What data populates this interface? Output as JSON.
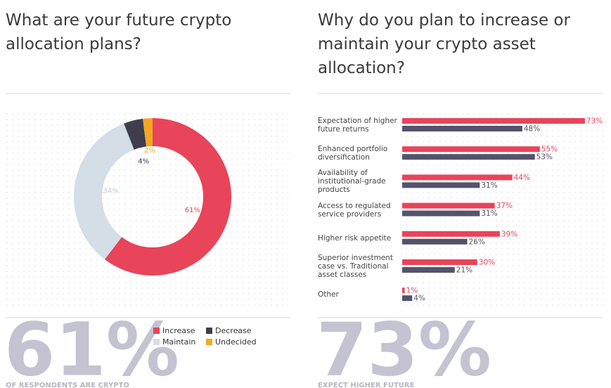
{
  "chart_data": [
    {
      "type": "pie",
      "title": "What are your future crypto allocation plans?",
      "categories": [
        "Increase",
        "Maintain",
        "Decrease",
        "Undecided"
      ],
      "values": [
        61,
        34,
        4,
        2
      ],
      "value_labels": [
        "61%",
        "34%",
        "4%",
        "2%"
      ],
      "colors": [
        "#e8445a",
        "#d3dee7",
        "#3f3d4e",
        "#f5a623"
      ],
      "callout": "61%",
      "callout_caption": "OF RESPONDENTS ARE CRYPTO"
    },
    {
      "type": "bar",
      "orientation": "horizontal",
      "title": "Why do you plan to increase or maintain your crypto asset allocation?",
      "categories": [
        "Expectation of higher future returns",
        "Enhanced portfolio diversification",
        "Availability of institutional-grade products",
        "Access to regulated service providers",
        "Higher risk appetite",
        "Superior investment case vs. Traditional asset classes",
        "Other"
      ],
      "series": [
        {
          "color": "#e8445a",
          "values": [
            73,
            55,
            44,
            37,
            39,
            30,
            1
          ],
          "value_labels": [
            "73%",
            "55%",
            "44%",
            "37%",
            "39%",
            "30%",
            "1%"
          ]
        },
        {
          "color": "#55536a",
          "values": [
            48,
            53,
            31,
            31,
            26,
            21,
            4
          ],
          "value_labels": [
            "48%",
            "53%",
            "31%",
            "31%",
            "26%",
            "21%",
            "4%"
          ]
        }
      ],
      "xlim": [
        0,
        75
      ],
      "callout": "73%",
      "callout_caption": "EXPECT HIGHER FUTURE"
    }
  ]
}
